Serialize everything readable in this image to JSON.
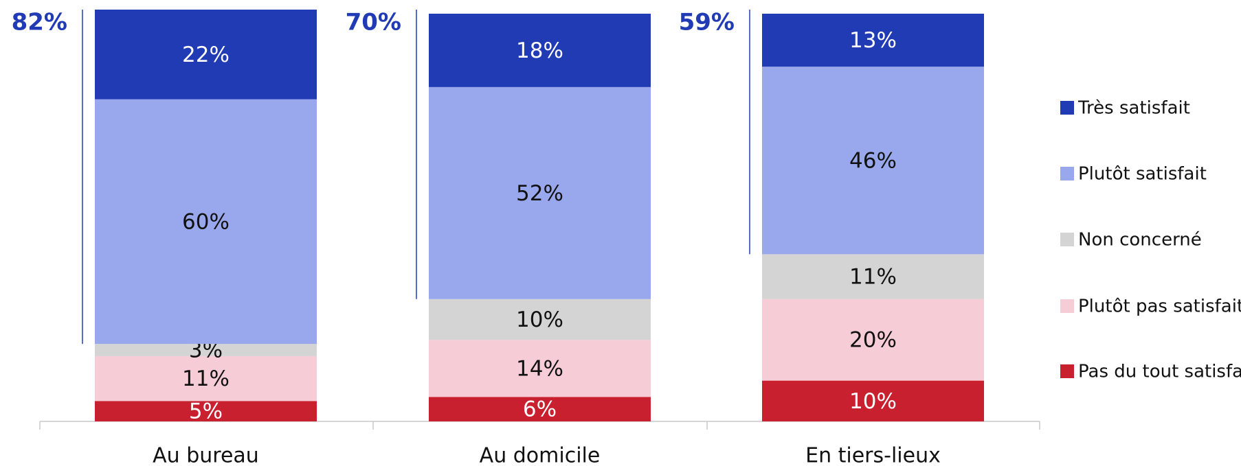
{
  "chart_data": {
    "type": "stacked_bar",
    "categories": [
      "Au bureau",
      "Au domicile",
      "En tiers-lieux"
    ],
    "series": [
      {
        "name": "Pas du tout satisfait",
        "color": "#c8202f",
        "values": [
          5,
          6,
          10
        ],
        "value_labels": [
          "5%",
          "6%",
          "10%"
        ]
      },
      {
        "name": "Plutôt pas satisfait",
        "color": "#f6ccd7",
        "values": [
          11,
          14,
          20
        ],
        "value_labels": [
          "11%",
          "14%",
          "20%"
        ]
      },
      {
        "name": "Non concerné",
        "color": "#d4d4d4",
        "values": [
          3,
          10,
          11
        ],
        "value_labels": [
          "3%",
          "10%",
          "11%"
        ]
      },
      {
        "name": "Plutôt satisfait",
        "color": "#99a8ec",
        "values": [
          60,
          52,
          46
        ],
        "value_labels": [
          "60%",
          "52%",
          "46%"
        ]
      },
      {
        "name": "Très satisfait",
        "color": "#213bb5",
        "values": [
          22,
          18,
          13
        ],
        "value_labels": [
          "22%",
          "18%",
          "13%"
        ]
      }
    ],
    "totals": [
      {
        "value": 82,
        "label": "82%"
      },
      {
        "value": 70,
        "label": "70%"
      },
      {
        "value": 59,
        "label": "59%"
      }
    ],
    "legend": "right"
  }
}
